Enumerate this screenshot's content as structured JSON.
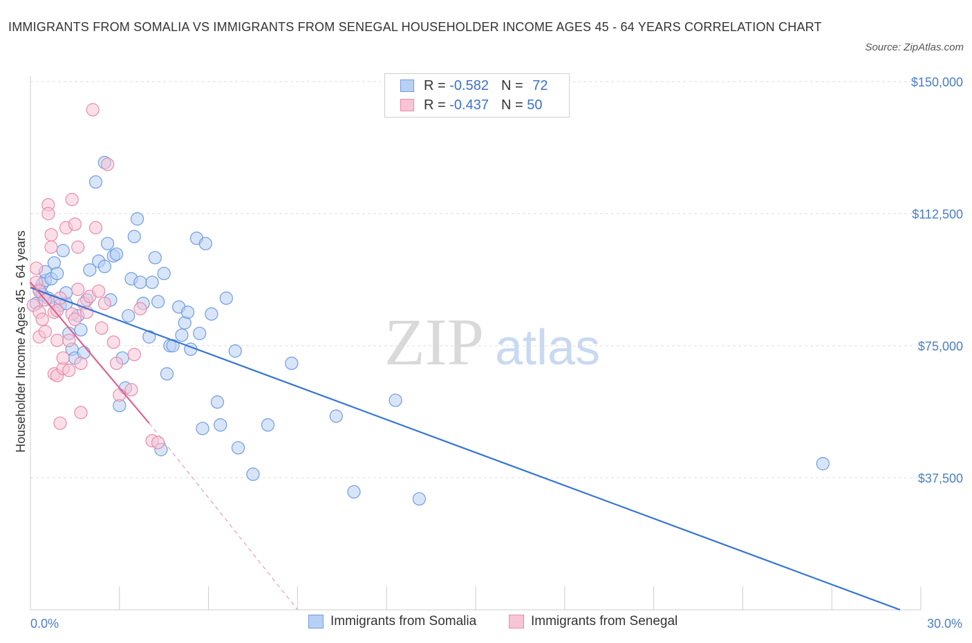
{
  "header": {
    "title": "IMMIGRANTS FROM SOMALIA VS IMMIGRANTS FROM SENEGAL HOUSEHOLDER INCOME AGES 45 - 64 YEARS CORRELATION CHART",
    "source": "Source: ZipAtlas.com"
  },
  "watermark": {
    "zip": "ZIP",
    "atlas": "atlas"
  },
  "legend": {
    "somalia": {
      "r_label": "R =",
      "r_value": "-0.582",
      "n_label": "N =",
      "n_value": "72"
    },
    "senegal": {
      "r_label": "R =",
      "r_value": "-0.437",
      "n_label": "N =",
      "n_value": "50"
    }
  },
  "colors": {
    "somalia_fill": "#b8d0f4",
    "somalia_stroke": "#6e9be0",
    "somalia_line": "#3474d4",
    "senegal_fill": "#f7c4d6",
    "senegal_stroke": "#e88aab",
    "senegal_line": "#e0608e",
    "grid": "#dddddd",
    "tick_text": "#4a7cc9"
  },
  "chart_data": {
    "type": "scatter",
    "title": "IMMIGRANTS FROM SOMALIA VS IMMIGRANTS FROM SENEGAL HOUSEHOLDER INCOME AGES 45 - 64 YEARS CORRELATION CHART",
    "xlabel": "",
    "ylabel": "Householder Income Ages 45 - 64 years",
    "xlim": [
      0,
      30
    ],
    "ylim": [
      0,
      150000
    ],
    "x_tick_labels": [
      "0.0%",
      "30.0%"
    ],
    "y_ticks": [
      37500,
      75000,
      112500,
      150000
    ],
    "y_tick_labels": [
      "$37,500",
      "$75,000",
      "$112,500",
      "$150,000"
    ],
    "series": [
      {
        "name": "Immigrants from Somalia",
        "trend": {
          "x": [
            0,
            29.3
          ],
          "y": [
            91500,
            0
          ]
        },
        "points": [
          [
            0.2,
            87000
          ],
          [
            0.3,
            91000
          ],
          [
            0.4,
            92500
          ],
          [
            0.4,
            89500
          ],
          [
            0.5,
            93500
          ],
          [
            0.5,
            96000
          ],
          [
            0.6,
            88500
          ],
          [
            0.7,
            94000
          ],
          [
            0.8,
            87500
          ],
          [
            0.8,
            98500
          ],
          [
            0.9,
            95500
          ],
          [
            1.0,
            86500
          ],
          [
            1.1,
            102000
          ],
          [
            1.2,
            87000
          ],
          [
            1.2,
            90000
          ],
          [
            1.3,
            78500
          ],
          [
            1.4,
            74000
          ],
          [
            1.5,
            71500
          ],
          [
            1.6,
            83500
          ],
          [
            1.7,
            79500
          ],
          [
            1.8,
            73000
          ],
          [
            1.9,
            88000
          ],
          [
            2.0,
            96500
          ],
          [
            2.2,
            121500
          ],
          [
            2.3,
            99000
          ],
          [
            2.5,
            127000
          ],
          [
            2.5,
            97500
          ],
          [
            2.6,
            104000
          ],
          [
            2.7,
            88000
          ],
          [
            2.8,
            100500
          ],
          [
            2.9,
            101000
          ],
          [
            3.0,
            58000
          ],
          [
            3.1,
            71500
          ],
          [
            3.2,
            63000
          ],
          [
            3.3,
            83500
          ],
          [
            3.4,
            94000
          ],
          [
            3.5,
            106000
          ],
          [
            3.6,
            111000
          ],
          [
            3.7,
            93000
          ],
          [
            3.8,
            87000
          ],
          [
            4.0,
            77500
          ],
          [
            4.1,
            93000
          ],
          [
            4.2,
            100000
          ],
          [
            4.3,
            87500
          ],
          [
            4.4,
            45500
          ],
          [
            4.5,
            95500
          ],
          [
            4.6,
            67000
          ],
          [
            4.7,
            75000
          ],
          [
            4.8,
            75000
          ],
          [
            5.0,
            86000
          ],
          [
            5.1,
            78000
          ],
          [
            5.2,
            81500
          ],
          [
            5.3,
            84500
          ],
          [
            5.4,
            74000
          ],
          [
            5.6,
            105500
          ],
          [
            5.7,
            78500
          ],
          [
            5.8,
            51500
          ],
          [
            5.9,
            104000
          ],
          [
            6.1,
            84000
          ],
          [
            6.3,
            59000
          ],
          [
            6.4,
            52500
          ],
          [
            6.6,
            88500
          ],
          [
            6.9,
            73500
          ],
          [
            7.0,
            46000
          ],
          [
            7.5,
            38500
          ],
          [
            8.0,
            52500
          ],
          [
            8.8,
            70000
          ],
          [
            10.3,
            55000
          ],
          [
            10.9,
            33500
          ],
          [
            12.3,
            59500
          ],
          [
            13.1,
            31500
          ],
          [
            26.7,
            41500
          ]
        ]
      },
      {
        "name": "Immigrants from Senegal",
        "trend": {
          "x": [
            0,
            4.0
          ],
          "y": [
            93000,
            53000
          ],
          "dashed_extension": {
            "x": [
              4.0,
              9.0
            ],
            "y": [
              53000,
              0
            ]
          }
        },
        "points": [
          [
            0.1,
            86500
          ],
          [
            0.2,
            97000
          ],
          [
            0.2,
            93000
          ],
          [
            0.3,
            84500
          ],
          [
            0.3,
            90500
          ],
          [
            0.3,
            77500
          ],
          [
            0.4,
            82500
          ],
          [
            0.5,
            88000
          ],
          [
            0.5,
            79000
          ],
          [
            0.6,
            115000
          ],
          [
            0.6,
            112500
          ],
          [
            0.7,
            106500
          ],
          [
            0.7,
            103000
          ],
          [
            0.8,
            67000
          ],
          [
            0.8,
            84500
          ],
          [
            0.9,
            66500
          ],
          [
            0.9,
            76500
          ],
          [
            0.9,
            85000
          ],
          [
            1.0,
            53000
          ],
          [
            1.0,
            88500
          ],
          [
            1.1,
            68500
          ],
          [
            1.1,
            71500
          ],
          [
            1.2,
            108500
          ],
          [
            1.3,
            68000
          ],
          [
            1.3,
            76500
          ],
          [
            1.4,
            116500
          ],
          [
            1.4,
            84000
          ],
          [
            1.5,
            109500
          ],
          [
            1.5,
            82500
          ],
          [
            1.6,
            103000
          ],
          [
            1.6,
            91000
          ],
          [
            1.7,
            56000
          ],
          [
            1.7,
            70000
          ],
          [
            1.8,
            87000
          ],
          [
            1.9,
            84500
          ],
          [
            2.0,
            89000
          ],
          [
            2.1,
            142000
          ],
          [
            2.2,
            108500
          ],
          [
            2.3,
            90500
          ],
          [
            2.4,
            80000
          ],
          [
            2.5,
            87000
          ],
          [
            2.6,
            126500
          ],
          [
            2.8,
            76000
          ],
          [
            2.9,
            70000
          ],
          [
            3.0,
            61000
          ],
          [
            3.4,
            62500
          ],
          [
            3.5,
            72500
          ],
          [
            3.7,
            85500
          ],
          [
            4.1,
            48000
          ],
          [
            4.3,
            47500
          ]
        ]
      }
    ]
  },
  "bottom_legend": {
    "somalia": "Immigrants from Somalia",
    "senegal": "Immigrants from Senegal"
  }
}
